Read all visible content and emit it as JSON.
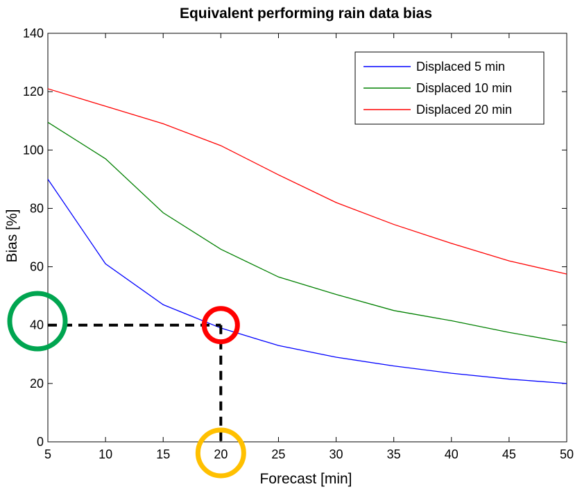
{
  "chart_data": {
    "type": "line",
    "title": "Equivalent performing rain data bias",
    "xlabel": "Forecast [min]",
    "ylabel": "Bias [%]",
    "xlim": [
      5,
      50
    ],
    "ylim": [
      0,
      140
    ],
    "xticks": [
      5,
      10,
      15,
      20,
      25,
      30,
      35,
      40,
      45,
      50
    ],
    "yticks": [
      0,
      20,
      40,
      60,
      80,
      100,
      120,
      140
    ],
    "grid": false,
    "legend_position": "top-right",
    "x": [
      5,
      10,
      15,
      20,
      25,
      30,
      35,
      40,
      45,
      50
    ],
    "series": [
      {
        "name": "Displaced 5 min",
        "color": "#0000ff",
        "values": [
          90,
          61,
          47,
          39,
          33,
          29,
          26,
          23.5,
          21.5,
          20
        ]
      },
      {
        "name": "Displaced 10 min",
        "color": "#008000",
        "values": [
          109.5,
          97,
          78.5,
          66,
          56.5,
          50.5,
          45,
          41.5,
          37.5,
          34
        ]
      },
      {
        "name": "Displaced 20 min",
        "color": "#ff0000",
        "values": [
          121,
          115,
          109,
          101.5,
          91.5,
          82,
          74.5,
          68,
          62,
          57.5
        ]
      }
    ],
    "annotations": {
      "dashed_guide": {
        "x": 20,
        "y": 40,
        "color": "#000000"
      },
      "circles": [
        {
          "target": "y-axis value 40",
          "color": "#00a550"
        },
        {
          "target": "intersection at x=20, y=40",
          "color": "#ff0000"
        },
        {
          "target": "x-axis value 20",
          "color": "#ffc000"
        }
      ]
    }
  }
}
